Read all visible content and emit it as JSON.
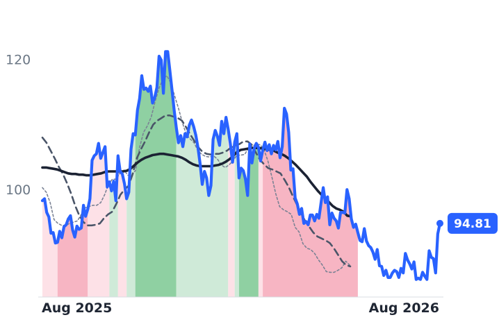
{
  "chart_data": {
    "type": "line",
    "title": "",
    "xlabel": "",
    "ylabel": "",
    "x_ticks": [
      "Aug 2025",
      "Aug 2026"
    ],
    "y_ticks": [
      100,
      120
    ],
    "ylim": [
      83.5,
      127
    ],
    "grid": false,
    "last_value_label": "94.81",
    "colors": {
      "price": "#2962ff",
      "slow_ma": "#1b2233",
      "band": "#4a5568",
      "fast_ma": "#7a8294",
      "bull_strong": "#8fd0a2",
      "bull_light": "#cfead8",
      "bear_strong": "#f7b5c3",
      "bear_light": "#fde1e7"
    },
    "regimes": [
      {
        "from": 0,
        "to": 7,
        "state": "bear_light"
      },
      {
        "from": 7,
        "to": 21,
        "state": "bear_strong"
      },
      {
        "from": 21,
        "to": 31,
        "state": "bear_light"
      },
      {
        "from": 31,
        "to": 35,
        "state": "bull_light"
      },
      {
        "from": 35,
        "to": 39,
        "state": "bear_light"
      },
      {
        "from": 39,
        "to": 43,
        "state": "bull_light"
      },
      {
        "from": 43,
        "to": 62,
        "state": "bull_strong"
      },
      {
        "from": 62,
        "to": 86,
        "state": "bull_light"
      },
      {
        "from": 86,
        "to": 89,
        "state": "bear_light"
      },
      {
        "from": 89,
        "to": 91,
        "state": "bull_light"
      },
      {
        "from": 91,
        "to": 100,
        "state": "bull_strong"
      },
      {
        "from": 100,
        "to": 102,
        "state": "bear_light"
      },
      {
        "from": 102,
        "to": 146,
        "state": "bear_strong"
      }
    ],
    "series": [
      {
        "key": "price",
        "values": [
          98.3,
          98.6,
          96.5,
          95.8,
          93.3,
          93.4,
          91.8,
          91.9,
          93.6,
          92.6,
          94.3,
          94.6,
          95.5,
          96.0,
          93.8,
          92.7,
          94.4,
          93.9,
          94.1,
          97.6,
          95.9,
          97.0,
          98.6,
          104.5,
          105.2,
          105.5,
          107.1,
          104.8,
          105.7,
          106.6,
          100.4,
          101.2,
          99.8,
          101.3,
          98.3,
          105.2,
          102.8,
          102.4,
          100.9,
          98.6,
          99.6,
          106.2,
          108.6,
          108.4,
          112.2,
          114.0,
          117.5,
          115.4,
          115.6,
          115.1,
          115.9,
          113.3,
          114.2,
          115.7,
          120.5,
          119.9,
          114.8,
          121.2,
          121.2,
          118.3,
          115.3,
          112.2,
          109.5,
          107.2,
          108.3,
          106.6,
          108.6,
          108.1,
          109.9,
          110.7,
          109.7,
          108.4,
          106.5,
          104.0,
          100.8,
          102.8,
          101.8,
          99.1,
          100.6,
          107.7,
          109.1,
          108.2,
          106.8,
          110.5,
          108.6,
          111.1,
          109.3,
          107.0,
          104.2,
          107.3,
          108.6,
          101.8,
          103.3,
          102.9,
          101.6,
          99.1,
          107.0,
          104.1,
          106.3,
          107.1,
          106.5,
          104.4,
          106.1,
          107.3,
          106.0,
          106.9,
          105.5,
          106.8,
          106.1,
          107.4,
          104.9,
          106.6,
          112.5,
          111.6,
          108.8,
          103.0,
          103.2,
          98.7,
          97.8,
          96.2,
          97.1,
          94.8,
          95.1,
          94.6,
          96.1,
          96.1,
          95.2,
          96.2,
          95.6,
          98.0,
          100.3,
          98.0,
          98.9,
          94.6,
          96.4,
          95.6,
          95.2,
          94.1,
          96.5,
          96.5,
          96.4,
          100.0,
          98.6,
          95.5,
          94.2,
          94.7,
          93.4,
          92.2,
          92.0,
          94.0,
          92.1,
          91.4,
          91.1,
          90.4,
          89.3,
          90.8,
          88.3,
          88.2,
          86.8,
          87.6,
          86.5,
          86.5,
          87.2,
          87.6,
          87.4,
          86.5,
          87.9,
          87.2,
          90.2,
          89.2,
          88.6,
          87.8,
          88.9,
          86.2,
          86.4,
          86.2,
          87.3,
          86.7,
          86.2,
          90.6,
          89.6,
          89.4,
          87.2,
          93.2,
          94.81
        ]
      },
      {
        "key": "slow_ma",
        "values": [
          103.4,
          103.4,
          103.3,
          103.2,
          103.1,
          102.9,
          102.7,
          102.5,
          102.4,
          102.4,
          102.3,
          102.3,
          102.2,
          102.2,
          102.3,
          102.4,
          102.5,
          102.7,
          102.8,
          102.8,
          102.8,
          102.8,
          102.8,
          102.9,
          103.2,
          103.7,
          104.2,
          104.6,
          104.9,
          105.1,
          105.3,
          105.4,
          105.5,
          105.5,
          105.4,
          105.3,
          105.2,
          105.1,
          104.9,
          104.6,
          104.2,
          103.9,
          103.7,
          103.6,
          103.6,
          103.6,
          103.6,
          103.7,
          103.8,
          104.0,
          104.3,
          104.7,
          105.2,
          105.8,
          106.1,
          106.2,
          106.3,
          106.4,
          106.4,
          106.4,
          106.3,
          106.2,
          106.1,
          106.0,
          105.7,
          105.5,
          105.2,
          104.8,
          104.3,
          103.8,
          103.2,
          102.6,
          102.0,
          101.2,
          100.5,
          99.8,
          99.2,
          98.7,
          98.1,
          97.5,
          97.1,
          96.9,
          96.6,
          96.0,
          95.9
        ],
        "x_step": 1.7
      },
      {
        "key": "band",
        "values": [
          108.0,
          107.2,
          106.0,
          104.8,
          103.5,
          102.4,
          101.0,
          99.4,
          97.5,
          96.0,
          95.0,
          94.5,
          94.5,
          94.6,
          94.8,
          95.6,
          96.2,
          96.6,
          97.8,
          99.2,
          100.0,
          100.6,
          102.4,
          104.8,
          106.2,
          107.4,
          108.8,
          110.0,
          110.6,
          111.0,
          111.4,
          111.4,
          111.2,
          111.0,
          110.6,
          109.6,
          108.5,
          107.5,
          106.5,
          105.8,
          105.5,
          105.4,
          105.5,
          105.5,
          105.7,
          106.0,
          106.5,
          106.8,
          107.0,
          107.4,
          107.4,
          106.9,
          105.7,
          104.6,
          103.9,
          103.3,
          103.1,
          102.8,
          102.5,
          101.5,
          100.4,
          99.0,
          97.7,
          96.4,
          95.2,
          94.3,
          93.4,
          92.8,
          92.5,
          92.2,
          91.8,
          91.0,
          90.0,
          89.0,
          88.4,
          88.2
        ],
        "x_step": 1.9
      },
      {
        "key": "fast_ma",
        "values": [
          100.3,
          99.6,
          98.0,
          95.4,
          94.8,
          94.5,
          94.5,
          94.8,
          95.0,
          95.2,
          96.2,
          97.2,
          97.4,
          97.6,
          97.6,
          98.0,
          99.2,
          100.8,
          101.6,
          101.6,
          102.6,
          103.0,
          102.2,
          102.2,
          103.0,
          106.5,
          108.8,
          109.8,
          111.2,
          113.6,
          115.6,
          117.0,
          117.5,
          116.4,
          114.4,
          112.5,
          110.3,
          108.5,
          107.8,
          107.2,
          106.0,
          105.4,
          105.1,
          105.0,
          105.2,
          104.7,
          103.8,
          103.4,
          103.8,
          104.4,
          105.3,
          105.3,
          105.4,
          106.4,
          106.7,
          107.0,
          106.9,
          106.1,
          104.4,
          102.0,
          99.4,
          97.4,
          96.9,
          96.6,
          96.2,
          94.2,
          93.5,
          91.7,
          91.0,
          90.8,
          90.2,
          89.2,
          88.4,
          87.4,
          87.3,
          87.3,
          87.6,
          88.0,
          89.0,
          88.4
        ],
        "x_step": 1.8
      }
    ]
  }
}
